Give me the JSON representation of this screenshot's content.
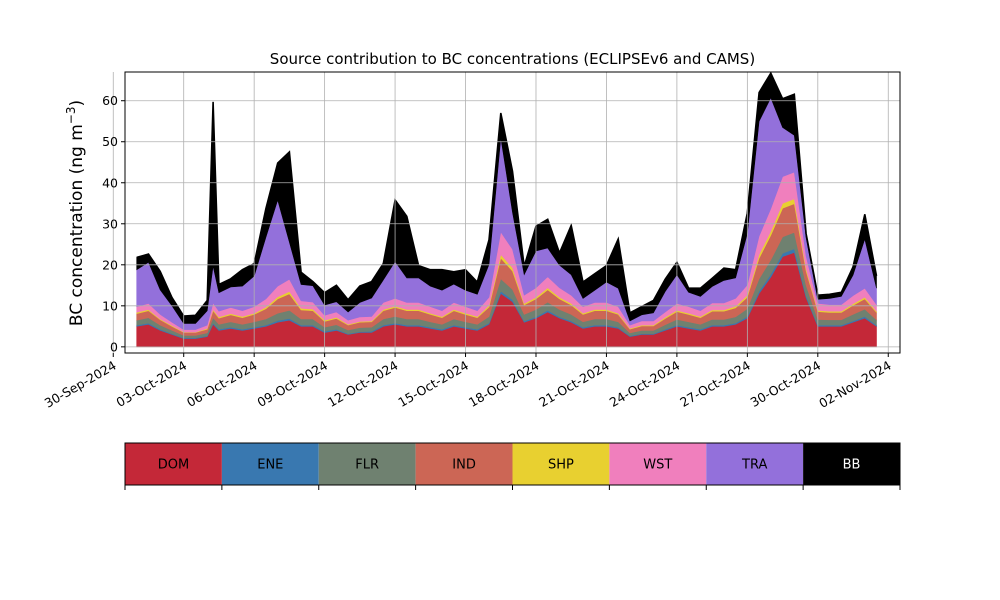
{
  "chart_data": {
    "type": "area",
    "stacked": true,
    "title": "Source contribution to BC concentrations (ECLIPSEv6 and CAMS)",
    "ylabel": "BC concentration (ng m",
    "ylabel_sup": "−3",
    "ylabel_close": ")",
    "xlabel": "",
    "grid": true,
    "ylim": [
      -1.5,
      67
    ],
    "xlim": [
      "2024-09-30T12:00",
      "2024-11-02T12:00"
    ],
    "yticks": [
      0,
      10,
      20,
      30,
      40,
      50,
      60
    ],
    "xticks": [
      "30-Sep-2024",
      "03-Oct-2024",
      "06-Oct-2024",
      "09-Oct-2024",
      "12-Oct-2024",
      "15-Oct-2024",
      "18-Oct-2024",
      "21-Oct-2024",
      "24-Oct-2024",
      "27-Oct-2024",
      "30-Oct-2024",
      "02-Nov-2024"
    ],
    "series_colors": {
      "DOM": "#c42838",
      "ENE": "#3978b0",
      "FLR": "#6f8170",
      "IND": "#cc6655",
      "SHP": "#e8d030",
      "WST": "#f07fbd",
      "TRA": "#9370db",
      "BB": "#000000"
    },
    "x": [
      "2024-10-01T00:00",
      "2024-10-01T12:00",
      "2024-10-02T00:00",
      "2024-10-02T12:00",
      "2024-10-03T00:00",
      "2024-10-03T12:00",
      "2024-10-04T00:00",
      "2024-10-04T06:00",
      "2024-10-04T12:00",
      "2024-10-05T00:00",
      "2024-10-05T12:00",
      "2024-10-06T00:00",
      "2024-10-06T12:00",
      "2024-10-07T00:00",
      "2024-10-07T12:00",
      "2024-10-08T00:00",
      "2024-10-08T12:00",
      "2024-10-09T00:00",
      "2024-10-09T12:00",
      "2024-10-10T00:00",
      "2024-10-10T12:00",
      "2024-10-11T00:00",
      "2024-10-11T12:00",
      "2024-10-12T00:00",
      "2024-10-12T12:00",
      "2024-10-13T00:00",
      "2024-10-13T12:00",
      "2024-10-14T00:00",
      "2024-10-14T12:00",
      "2024-10-15T00:00",
      "2024-10-15T12:00",
      "2024-10-16T00:00",
      "2024-10-16T12:00",
      "2024-10-17T00:00",
      "2024-10-17T12:00",
      "2024-10-18T00:00",
      "2024-10-18T12:00",
      "2024-10-19T00:00",
      "2024-10-19T12:00",
      "2024-10-20T00:00",
      "2024-10-20T12:00",
      "2024-10-21T00:00",
      "2024-10-21T12:00",
      "2024-10-22T00:00",
      "2024-10-22T12:00",
      "2024-10-23T00:00",
      "2024-10-23T12:00",
      "2024-10-24T00:00",
      "2024-10-24T12:00",
      "2024-10-25T00:00",
      "2024-10-25T12:00",
      "2024-10-26T00:00",
      "2024-10-26T12:00",
      "2024-10-27T00:00",
      "2024-10-27T12:00",
      "2024-10-28T00:00",
      "2024-10-28T12:00",
      "2024-10-29T00:00",
      "2024-10-29T12:00",
      "2024-10-30T00:00",
      "2024-10-30T12:00",
      "2024-10-31T00:00",
      "2024-10-31T12:00",
      "2024-11-01T00:00",
      "2024-11-01T12:00"
    ],
    "series": [
      {
        "name": "DOM",
        "values": [
          5,
          5.5,
          4,
          3,
          2,
          2,
          2.5,
          5.5,
          4,
          4.5,
          4,
          4.5,
          5,
          6,
          6.5,
          5,
          5,
          3.5,
          4,
          3,
          3.5,
          3.5,
          5,
          5.5,
          5,
          5,
          4.5,
          4,
          5,
          4.5,
          4,
          5.5,
          13,
          11,
          6,
          7,
          8.5,
          7,
          6,
          4.5,
          5,
          5,
          4.5,
          2.5,
          3,
          3,
          4,
          5,
          4.5,
          4,
          5,
          5,
          5.5,
          7,
          13,
          17,
          22,
          23,
          12,
          5,
          5,
          5,
          6,
          7,
          5
        ]
      },
      {
        "name": "ENE",
        "values": [
          0.3,
          0.3,
          0.3,
          0.2,
          0.2,
          0.2,
          0.2,
          0.3,
          0.3,
          0.3,
          0.3,
          0.3,
          0.3,
          0.4,
          0.4,
          0.3,
          0.3,
          0.3,
          0.3,
          0.2,
          0.2,
          0.3,
          0.3,
          0.3,
          0.3,
          0.3,
          0.3,
          0.3,
          0.3,
          0.3,
          0.3,
          0.3,
          0.6,
          0.5,
          0.3,
          0.3,
          0.4,
          0.3,
          0.3,
          0.3,
          0.3,
          0.3,
          0.3,
          0.2,
          0.2,
          0.2,
          0.3,
          0.3,
          0.3,
          0.3,
          0.3,
          0.3,
          0.3,
          0.4,
          0.6,
          0.7,
          0.8,
          0.9,
          0.5,
          0.3,
          0.3,
          0.3,
          0.3,
          0.4,
          0.3
        ]
      },
      {
        "name": "FLR",
        "values": [
          1.2,
          1.3,
          1,
          0.8,
          0.6,
          0.6,
          0.7,
          1.3,
          1.2,
          1.3,
          1.2,
          1.3,
          1.5,
          1.8,
          2,
          1.5,
          1.5,
          1,
          1.1,
          0.9,
          1,
          1,
          1.5,
          1.6,
          1.5,
          1.5,
          1.3,
          1.2,
          1.5,
          1.3,
          1.2,
          1.6,
          3,
          2.5,
          1.6,
          1.8,
          2,
          1.8,
          1.6,
          1.3,
          1.5,
          1.5,
          1.3,
          0.7,
          0.8,
          0.8,
          1.1,
          1.4,
          1.3,
          1.2,
          1.4,
          1.4,
          1.5,
          1.9,
          3,
          3.5,
          4,
          4,
          2.5,
          1.4,
          1.3,
          1.3,
          1.6,
          1.8,
          1.3
        ]
      },
      {
        "name": "IND",
        "values": [
          1.6,
          1.7,
          1.3,
          1,
          0.7,
          0.7,
          0.9,
          1.7,
          1.5,
          1.7,
          1.6,
          1.8,
          2.5,
          3.5,
          4,
          2.2,
          2,
          1.4,
          1.5,
          1.2,
          1.3,
          1.3,
          2,
          2.2,
          2,
          2,
          1.8,
          1.6,
          2,
          1.8,
          1.6,
          2.3,
          5,
          4.5,
          2.3,
          2.6,
          3,
          2.6,
          2.3,
          1.8,
          2,
          2,
          1.8,
          0.9,
          1.1,
          1.1,
          1.5,
          1.9,
          1.8,
          1.6,
          2,
          2,
          2.2,
          2.8,
          5,
          6,
          7,
          7,
          3.5,
          1.9,
          1.8,
          1.8,
          2.2,
          2.5,
          1.8
        ]
      },
      {
        "name": "SHP",
        "values": [
          0.3,
          0.3,
          0.2,
          0.2,
          0.1,
          0.1,
          0.2,
          0.3,
          0.3,
          0.3,
          0.3,
          0.3,
          0.4,
          0.5,
          0.6,
          0.4,
          0.4,
          0.3,
          0.3,
          0.2,
          0.2,
          0.2,
          0.3,
          0.3,
          0.3,
          0.3,
          0.3,
          0.3,
          0.3,
          0.3,
          0.3,
          0.4,
          0.9,
          0.8,
          0.4,
          0.4,
          0.5,
          0.4,
          0.4,
          0.3,
          0.3,
          0.3,
          0.3,
          0.2,
          0.2,
          0.2,
          0.3,
          0.3,
          0.3,
          0.3,
          0.3,
          0.3,
          0.4,
          0.5,
          0.9,
          1,
          1.2,
          1.2,
          0.6,
          0.3,
          0.3,
          0.3,
          0.4,
          0.4,
          0.3
        ]
      },
      {
        "name": "WST",
        "values": [
          1.4,
          1.5,
          1.1,
          0.8,
          0.6,
          0.6,
          0.8,
          1.6,
          1.4,
          1.5,
          1.4,
          1.6,
          2,
          2.6,
          3,
          1.8,
          1.7,
          1.2,
          1.3,
          1,
          1.1,
          1.1,
          1.7,
          1.9,
          1.7,
          1.7,
          1.6,
          1.4,
          1.7,
          1.6,
          1.4,
          2,
          5.5,
          4.5,
          2,
          2.3,
          2.7,
          2.3,
          2,
          1.6,
          1.7,
          1.7,
          1.6,
          0.8,
          1,
          1,
          1.3,
          1.7,
          1.6,
          1.4,
          1.7,
          1.7,
          1.9,
          2.5,
          4.5,
          5.5,
          6.5,
          6.5,
          3,
          1.7,
          1.6,
          1.6,
          2,
          2.2,
          1.6
        ]
      },
      {
        "name": "TRA",
        "values": [
          9,
          10,
          6,
          4,
          1.5,
          1.5,
          3.5,
          9,
          4.5,
          5,
          6,
          7.5,
          15,
          21,
          9,
          4,
          4,
          2.5,
          2.5,
          2,
          3.5,
          4.5,
          5.5,
          9,
          6,
          6,
          5,
          5,
          4.5,
          4,
          4,
          8,
          23,
          9,
          5,
          9,
          7,
          5.5,
          5,
          2,
          3,
          5,
          4.5,
          1,
          1.5,
          2,
          5,
          7,
          3.5,
          3.5,
          4,
          5.5,
          5,
          12.5,
          28,
          27,
          12,
          9,
          4.5,
          1,
          1.5,
          2,
          5,
          12,
          4
        ]
      },
      {
        "name": "BB",
        "values": [
          3,
          2,
          4.5,
          2,
          1.8,
          2,
          2.5,
          40,
          2,
          2,
          4,
          3,
          7,
          9,
          22,
          3,
          1,
          3,
          4,
          3,
          4,
          4,
          4,
          15,
          15,
          3,
          4,
          5,
          3,
          5,
          3,
          6,
          6,
          10,
          2,
          6,
          7,
          3,
          12,
          4,
          4,
          4,
          12,
          2,
          2,
          3,
          3,
          3,
          1,
          2,
          2,
          3,
          2,
          5,
          7,
          6,
          7,
          10,
          1,
          1,
          1,
          1,
          2,
          6,
          3
        ]
      }
    ]
  }
}
